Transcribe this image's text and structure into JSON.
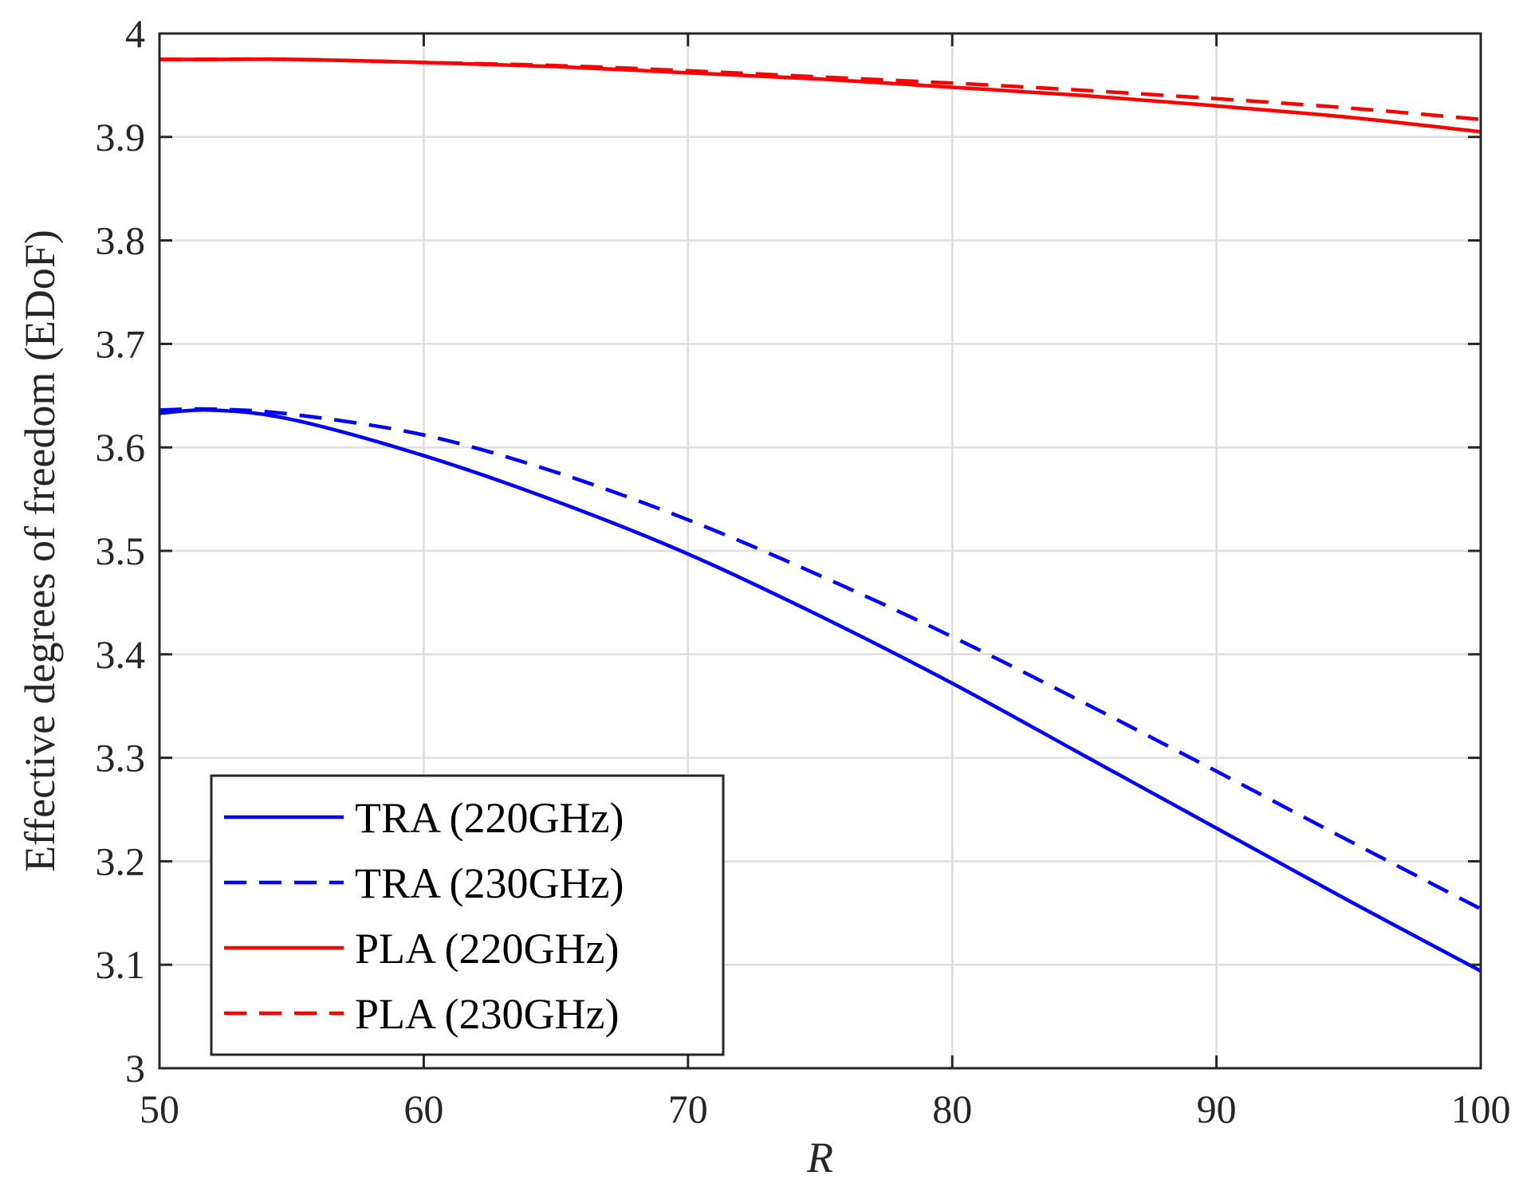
{
  "chart_data": {
    "type": "line",
    "title": "",
    "xlabel": "R",
    "ylabel": "Effective degrees of freedom (EDoF)",
    "xlim": [
      50,
      100
    ],
    "ylim": [
      3,
      4
    ],
    "xticks": [
      50,
      60,
      70,
      80,
      90,
      100
    ],
    "yticks": [
      3,
      3.1,
      3.2,
      3.3,
      3.4,
      3.5,
      3.6,
      3.7,
      3.8,
      3.9,
      4
    ],
    "xtick_labels": [
      "50",
      "60",
      "70",
      "80",
      "90",
      "100"
    ],
    "ytick_labels": [
      "3",
      "3.1",
      "3.2",
      "3.3",
      "3.4",
      "3.5",
      "3.6",
      "3.7",
      "3.8",
      "3.9",
      "4"
    ],
    "grid": true,
    "legend_position": "bottom-left",
    "x": [
      50,
      52,
      55,
      60,
      65,
      70,
      75,
      80,
      85,
      90,
      95,
      100
    ],
    "series": [
      {
        "name": "TRA (220GHz)",
        "color": "#0000ff",
        "dash": "solid",
        "values": [
          3.633,
          3.636,
          3.627,
          3.592,
          3.548,
          3.497,
          3.437,
          3.372,
          3.302,
          3.232,
          3.162,
          3.094
        ]
      },
      {
        "name": "TRA (230GHz)",
        "color": "#0000ff",
        "dash": "dashed",
        "values": [
          3.636,
          3.637,
          3.632,
          3.612,
          3.576,
          3.53,
          3.476,
          3.417,
          3.353,
          3.287,
          3.22,
          3.154
        ]
      },
      {
        "name": "PLA (220GHz)",
        "color": "#ff0000",
        "dash": "solid",
        "values": [
          3.975,
          3.975,
          3.975,
          3.972,
          3.968,
          3.962,
          3.956,
          3.948,
          3.94,
          3.93,
          3.919,
          3.905
        ]
      },
      {
        "name": "PLA (230GHz)",
        "color": "#ff0000",
        "dash": "dashed",
        "values": [
          3.975,
          3.975,
          3.975,
          3.972,
          3.969,
          3.964,
          3.958,
          3.952,
          3.945,
          3.937,
          3.928,
          3.917
        ]
      }
    ]
  }
}
